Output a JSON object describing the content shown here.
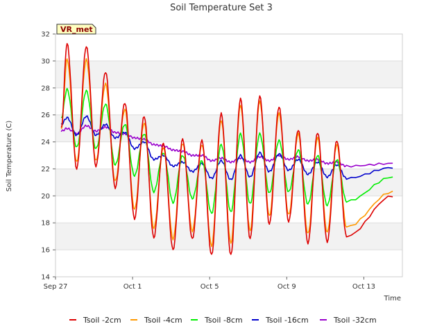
{
  "chart_data": {
    "type": "line",
    "title": "Soil Temperature Set 3",
    "xlabel": "Time",
    "ylabel": "Soil Temperature (C)",
    "site_label": "VR_met",
    "x_ticks": [
      "Sep 27",
      "Oct 1",
      "Oct 5",
      "Oct 9",
      "Oct 13"
    ],
    "x_tick_days": [
      0,
      4,
      8,
      12,
      16
    ],
    "xlim": [
      0,
      18
    ],
    "ylim": [
      14,
      32
    ],
    "y_ticks": [
      14,
      16,
      18,
      20,
      22,
      24,
      26,
      28,
      30,
      32
    ],
    "grid": "horizontal bands",
    "legend_position": "bottom",
    "peak_day_offset": 0.6,
    "series": [
      {
        "name": "Tsoil -2cm",
        "color": "#dd0000",
        "start_day": 0.3,
        "end_day": 17.5,
        "start_value": 25.0,
        "end_value": 20.0,
        "daily_peaks": [
          31.3,
          31.1,
          29.2,
          26.9,
          25.9,
          23.9,
          24.2,
          24.1,
          26.1,
          27.2,
          27.4,
          26.6,
          24.9,
          24.7,
          24.1
        ],
        "daily_troughs": [
          22.0,
          22.2,
          20.6,
          18.3,
          16.9,
          16.0,
          16.8,
          15.6,
          15.6,
          16.8,
          17.9,
          18.1,
          16.5,
          16.6,
          17.0
        ]
      },
      {
        "name": "Tsoil -4cm",
        "color": "#ff9900",
        "start_day": 0.3,
        "end_day": 17.5,
        "start_value": 25.0,
        "end_value": 20.3,
        "daily_peaks": [
          30.1,
          30.1,
          28.3,
          26.4,
          25.4,
          23.6,
          23.9,
          23.8,
          25.6,
          26.7,
          27.0,
          26.1,
          24.6,
          24.3,
          23.8
        ],
        "daily_troughs": [
          22.5,
          22.6,
          21.1,
          19.0,
          17.6,
          16.8,
          17.4,
          16.3,
          16.5,
          17.4,
          18.5,
          18.6,
          17.2,
          17.3,
          17.7
        ]
      },
      {
        "name": "Tsoil -8cm",
        "color": "#00ee00",
        "start_day": 0.3,
        "end_day": 17.5,
        "start_value": 25.8,
        "end_value": 21.4,
        "daily_peaks": [
          27.9,
          27.8,
          26.8,
          25.3,
          24.6,
          23.2,
          23.0,
          22.6,
          23.8,
          24.6,
          24.6,
          24.1,
          23.4,
          23.0,
          22.7
        ],
        "daily_troughs": [
          23.6,
          23.5,
          22.3,
          21.5,
          20.3,
          19.5,
          19.8,
          18.7,
          18.8,
          19.4,
          20.2,
          20.3,
          19.4,
          19.3,
          19.6
        ]
      },
      {
        "name": "Tsoil -16cm",
        "color": "#0000cc",
        "start_day": 0.3,
        "end_day": 17.5,
        "start_value": 25.3,
        "end_value": 22.1,
        "daily_peaks": [
          25.8,
          25.9,
          25.3,
          24.7,
          24.0,
          23.0,
          22.5,
          22.4,
          22.6,
          23.0,
          23.2,
          23.1,
          22.7,
          22.5,
          22.3
        ],
        "daily_troughs": [
          24.5,
          24.5,
          24.3,
          23.5,
          22.7,
          22.2,
          21.8,
          21.3,
          21.2,
          21.4,
          21.8,
          21.9,
          21.6,
          21.4,
          21.3
        ]
      },
      {
        "name": "Tsoil -32cm",
        "color": "#9900cc",
        "start_day": 0.3,
        "end_day": 17.5,
        "start_value": 24.8,
        "end_value": 22.4,
        "daily_peaks": [
          25.0,
          25.2,
          25.1,
          24.6,
          24.2,
          23.7,
          23.3,
          23.0,
          22.8,
          22.8,
          22.9,
          23.0,
          22.9,
          22.7,
          22.5
        ],
        "daily_troughs": [
          24.6,
          24.8,
          24.7,
          24.3,
          23.8,
          23.4,
          23.0,
          22.6,
          22.5,
          22.5,
          22.6,
          22.7,
          22.6,
          22.4,
          22.2
        ]
      }
    ]
  }
}
